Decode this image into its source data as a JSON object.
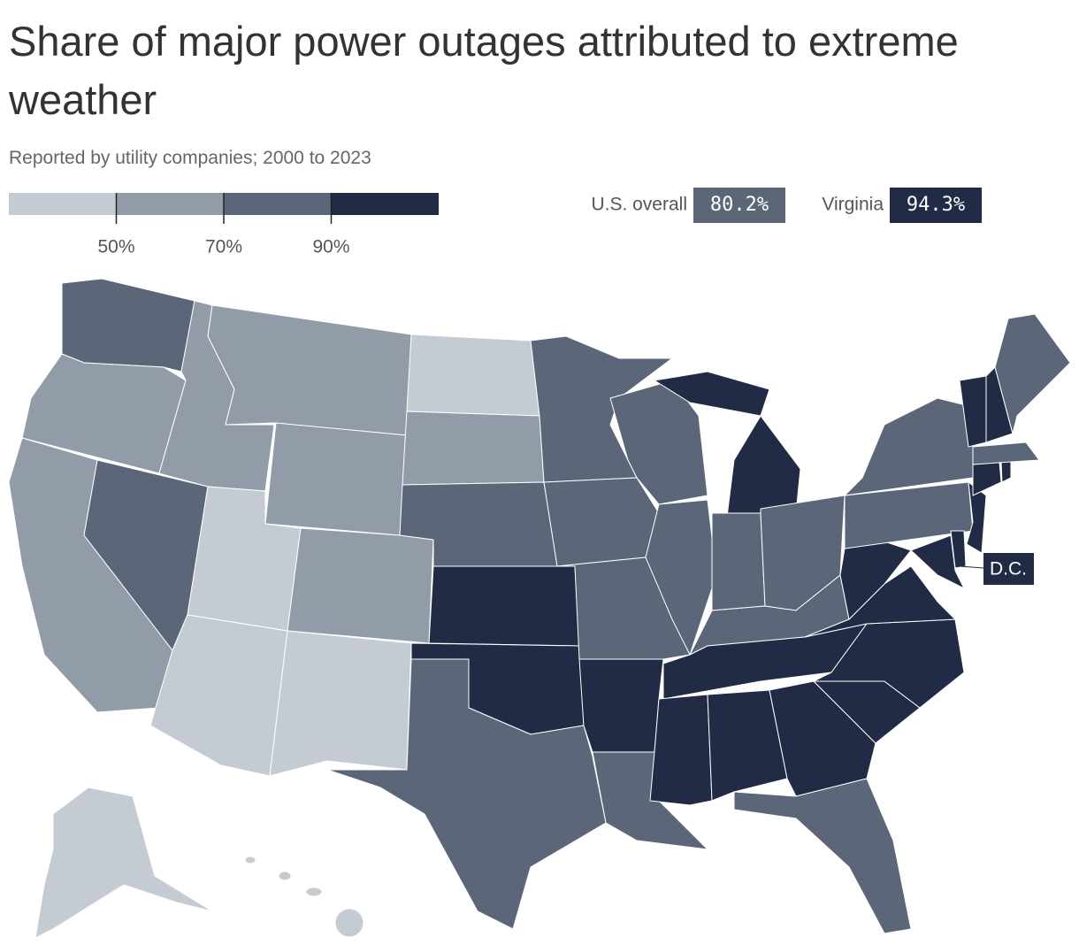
{
  "header": {
    "title": "Share of major power outages attributed to extreme weather",
    "subtitle": "Reported by utility companies; 2000 to 2023"
  },
  "legend": {
    "colors": [
      "#c5cbd3",
      "#919ca8",
      "#5b6678",
      "#212b45"
    ],
    "ticks": [
      {
        "value": 50,
        "label": "50%"
      },
      {
        "value": 70,
        "label": "70%"
      },
      {
        "value": 90,
        "label": "90%"
      }
    ]
  },
  "stats": [
    {
      "label": "U.S. overall",
      "value": 80.2,
      "value_label": "80.2%"
    },
    {
      "label": "Virginia",
      "value": 94.3,
      "value_label": "94.3%"
    }
  ],
  "annotation": "D.C."
}
